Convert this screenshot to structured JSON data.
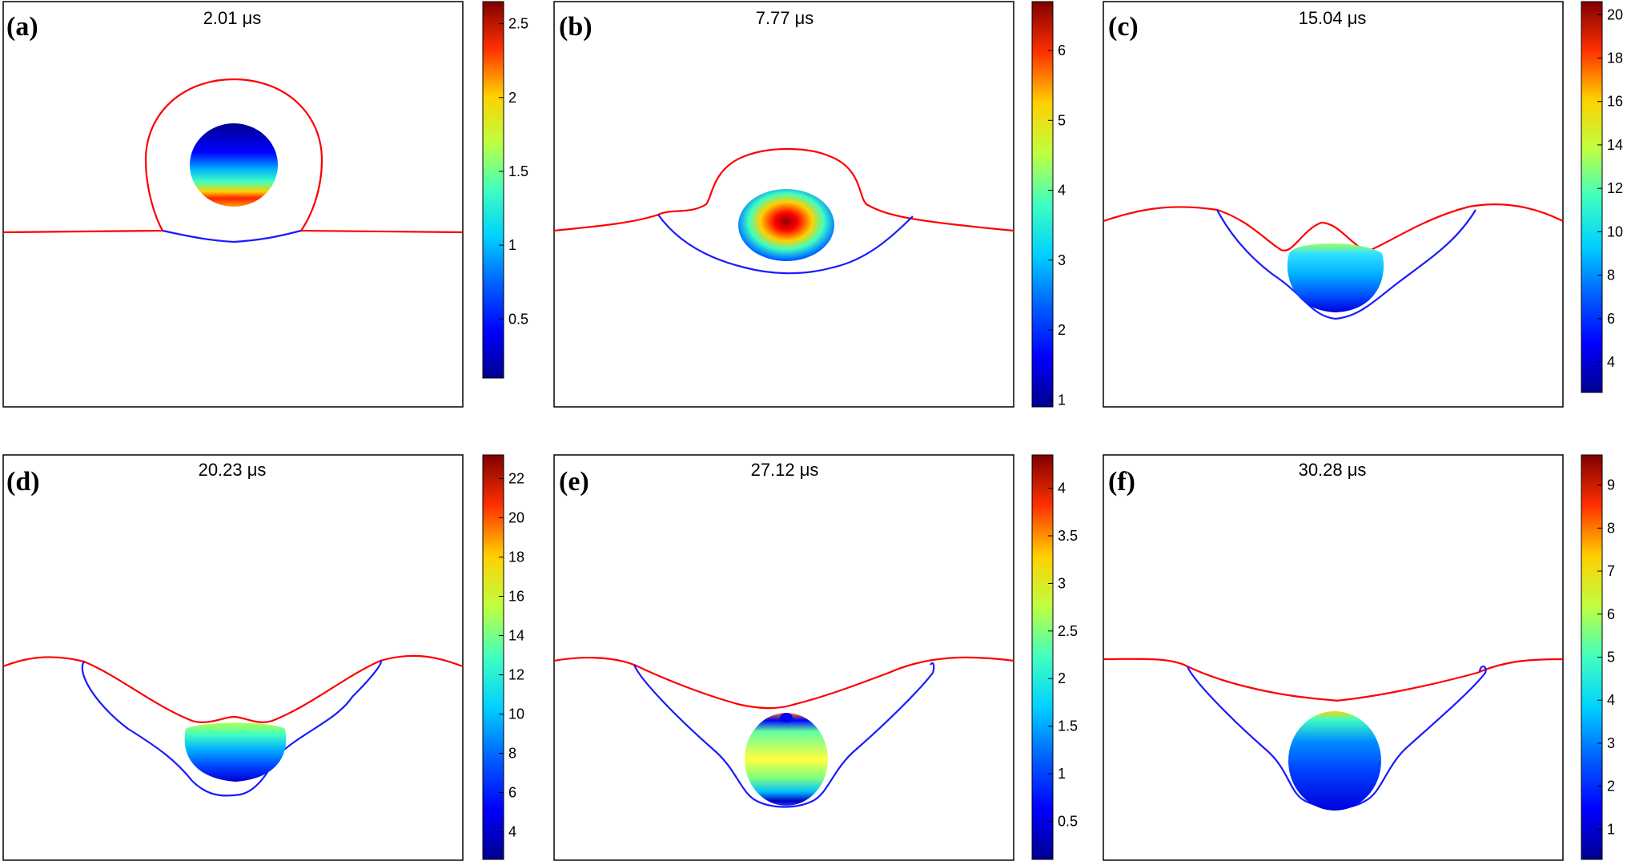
{
  "figure": {
    "panels": [
      {
        "label": "(a)",
        "time": "2.01 μs"
      },
      {
        "label": "(b)",
        "time": "7.77 μs"
      },
      {
        "label": "(c)",
        "time": "15.04 μs"
      },
      {
        "label": "(d)",
        "time": "20.23 μs"
      },
      {
        "label": "(e)",
        "time": "27.12 μs"
      },
      {
        "label": "(f)",
        "time": "30.28 μs"
      }
    ]
  },
  "chart_data": [
    {
      "type": "heatmap",
      "panel": "(a)",
      "title": "2.01 μs",
      "colorbar": {
        "range": [
          0.1,
          2.65
        ],
        "ticks": [
          "0.5",
          "1",
          "1.5",
          "2",
          "2.5"
        ],
        "tick_values": [
          0.5,
          1,
          1.5,
          2,
          2.5
        ]
      }
    },
    {
      "type": "heatmap",
      "panel": "(b)",
      "title": "7.77 μs",
      "colorbar": {
        "range": [
          0.9,
          6.7
        ],
        "ticks": [
          "1",
          "2",
          "3",
          "4",
          "5",
          "6"
        ],
        "tick_values": [
          1,
          2,
          3,
          4,
          5,
          6
        ]
      }
    },
    {
      "type": "heatmap",
      "panel": "(c)",
      "title": "15.04 μs",
      "colorbar": {
        "range": [
          2.6,
          20.6
        ],
        "ticks": [
          "4",
          "6",
          "8",
          "10",
          "12",
          "14",
          "16",
          "18",
          "20"
        ],
        "tick_values": [
          4,
          6,
          8,
          10,
          12,
          14,
          16,
          18,
          20
        ]
      }
    },
    {
      "type": "heatmap",
      "panel": "(d)",
      "title": "20.23 μs",
      "colorbar": {
        "range": [
          2.6,
          23.2
        ],
        "ticks": [
          "4",
          "6",
          "8",
          "10",
          "12",
          "14",
          "16",
          "18",
          "20",
          "22"
        ],
        "tick_values": [
          4,
          6,
          8,
          10,
          12,
          14,
          16,
          18,
          20,
          22
        ]
      }
    },
    {
      "type": "heatmap",
      "panel": "(e)",
      "title": "27.12 μs",
      "colorbar": {
        "range": [
          0.1,
          4.35
        ],
        "ticks": [
          "0.5",
          "1",
          "1.5",
          "2",
          "2.5",
          "3",
          "3.5",
          "4"
        ],
        "tick_values": [
          0.5,
          1,
          1.5,
          2,
          2.5,
          3,
          3.5,
          4
        ]
      }
    },
    {
      "type": "heatmap",
      "panel": "(f)",
      "title": "30.28 μs",
      "colorbar": {
        "range": [
          0.3,
          9.7
        ],
        "ticks": [
          "1",
          "2",
          "3",
          "4",
          "5",
          "6",
          "7",
          "8",
          "9"
        ],
        "tick_values": [
          1,
          2,
          3,
          4,
          5,
          6,
          7,
          8,
          9
        ]
      }
    }
  ],
  "colors": {
    "interface_red": "#ff0000",
    "interface_blue": "#1a1aff",
    "jet": [
      "#00008f",
      "#0000ff",
      "#0080ff",
      "#00ffff",
      "#80ff80",
      "#ffff00",
      "#ff8000",
      "#ff0000",
      "#800000"
    ]
  }
}
